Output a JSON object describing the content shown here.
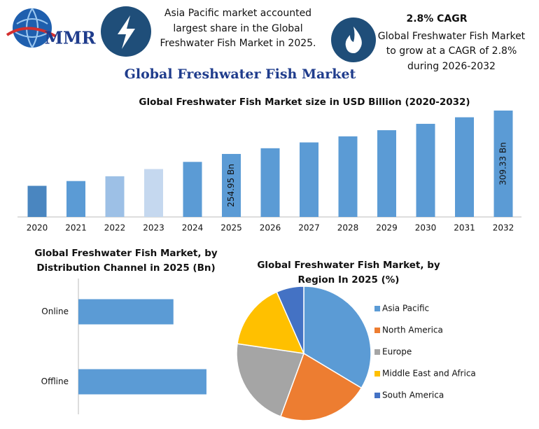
{
  "header": {
    "logo": "MMR",
    "highlight_left": [
      "Asia Pacific market accounted",
      "largest share in the Global",
      "Freshwater Fish Market in 2025."
    ],
    "cagr_title": "2.8% CAGR",
    "highlight_right": [
      "Global Freshwater Fish Market",
      "to grow at a CAGR of 2.8%",
      "during 2026-2032"
    ],
    "title": "Global Freshwater Fish Market"
  },
  "chart_data": [
    {
      "type": "bar",
      "title": "Global Freshwater Fish Market size in USD Billion (2020-2032)",
      "categories": [
        "2020",
        "2021",
        "2022",
        "2023",
        "2024",
        "2025",
        "2026",
        "2027",
        "2028",
        "2029",
        "2030",
        "2031",
        "2032"
      ],
      "values": [
        215,
        221,
        227,
        236,
        245,
        254.95,
        262.1,
        269.4,
        277.0,
        284.7,
        292.7,
        300.9,
        309.33
      ],
      "value_labels": [
        null,
        null,
        null,
        null,
        null,
        "254.95 Bn",
        null,
        null,
        null,
        null,
        null,
        null,
        "309.33 Bn"
      ],
      "colors": [
        "#4a86c0",
        "#5b9bd5",
        "#9dc0e6",
        "#c5d8ef",
        "#5b9bd5",
        "#5b9bd5",
        "#5b9bd5",
        "#5b9bd5",
        "#5b9bd5",
        "#5b9bd5",
        "#5b9bd5",
        "#5b9bd5",
        "#5b9bd5"
      ],
      "ylim": [
        176,
        315
      ]
    },
    {
      "type": "barh",
      "title": [
        "Global Freshwater Fish Market, by",
        "Distribution Channel in 2025 (Bn)"
      ],
      "categories": [
        "Online",
        "Offline"
      ],
      "values": [
        108.6,
        146.35
      ],
      "color": "#5b9bd5",
      "xlim": [
        0,
        200
      ]
    },
    {
      "type": "pie",
      "title": [
        "Global Freshwater Fish Market, by",
        "Region In 2025 (%)"
      ],
      "categories": [
        "Asia Pacific",
        "North America",
        "Europe",
        "Middle East and Africa",
        "South America"
      ],
      "values": [
        33.6,
        22,
        21.7,
        16.1,
        6.6
      ],
      "colors": [
        "#5b9bd5",
        "#ed7d31",
        "#a5a5a5",
        "#ffc000",
        "#4472c4"
      ],
      "legend": "right"
    }
  ]
}
